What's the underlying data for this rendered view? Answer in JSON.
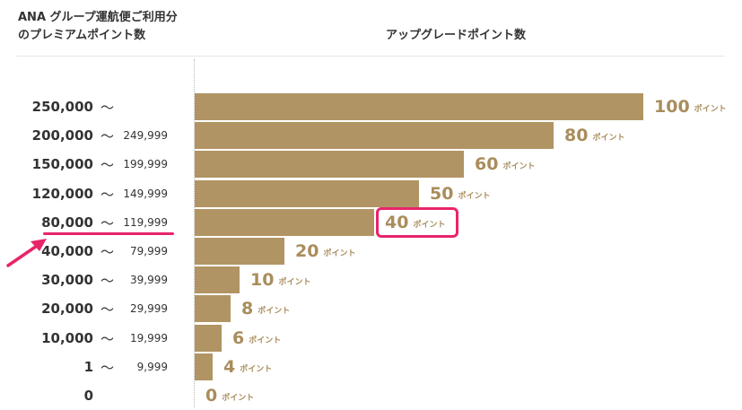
{
  "header": {
    "left_line1": "ANA グループ運航便ご利用分",
    "left_line2": "のプレミアムポイント数",
    "right": "アップグレードポイント数"
  },
  "chart_data": {
    "type": "bar",
    "orientation": "horizontal",
    "unit_label": "ポイント",
    "range_separator": "〜",
    "categories": [
      {
        "min": "250,000",
        "max": ""
      },
      {
        "min": "200,000",
        "max": "249,999"
      },
      {
        "min": "150,000",
        "max": "199,999"
      },
      {
        "min": "120,000",
        "max": "149,999"
      },
      {
        "min": "80,000",
        "max": "119,999"
      },
      {
        "min": "40,000",
        "max": "79,999"
      },
      {
        "min": "30,000",
        "max": "39,999"
      },
      {
        "min": "20,000",
        "max": "29,999"
      },
      {
        "min": "10,000",
        "max": "19,999"
      },
      {
        "min": "1",
        "max": "9,999"
      },
      {
        "min": "0",
        "max": ""
      }
    ],
    "values": [
      100,
      80,
      60,
      50,
      40,
      20,
      10,
      8,
      6,
      4,
      0
    ],
    "xlim": [
      0,
      100
    ],
    "highlighted_index": 4,
    "colors": {
      "bar": "#b19463",
      "value_text": "#a98d5c",
      "highlight": "#e8246b"
    }
  }
}
